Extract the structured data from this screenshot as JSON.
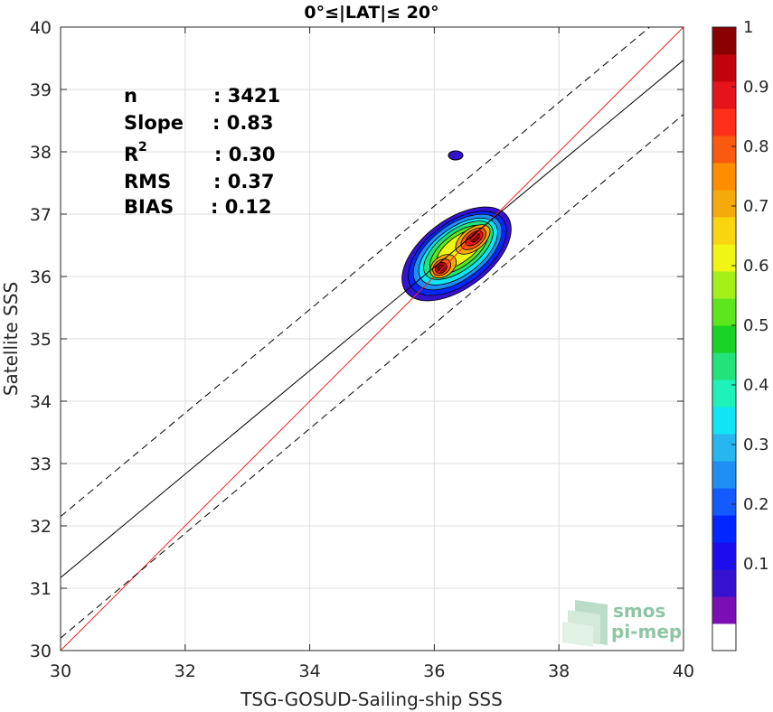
{
  "chart_data": {
    "type": "scatter",
    "title": "0°≤|LAT|≤ 20°",
    "xlabel": "TSG-GOSUD-Sailing-ship SSS",
    "ylabel": "Satellite SSS",
    "xlim": [
      30,
      40
    ],
    "ylim": [
      30,
      40
    ],
    "x_ticks": [
      "30",
      "32",
      "34",
      "36",
      "38",
      "40"
    ],
    "y_ticks": [
      "30",
      "31",
      "32",
      "33",
      "34",
      "35",
      "36",
      "37",
      "38",
      "39",
      "40"
    ],
    "grid": true,
    "stats": [
      {
        "label": "n",
        "value": ": 3421"
      },
      {
        "label": "Slope",
        "value": ": 0.83"
      },
      {
        "label": "R",
        "sup": "2",
        "value": ": 0.30"
      },
      {
        "label": "RMS",
        "value": ": 0.37"
      },
      {
        "label": "BIAS",
        "value": ": 0.12"
      }
    ],
    "lines": [
      {
        "kind": "identity",
        "color": "#e8261e",
        "x": [
          30,
          40
        ],
        "y": [
          30,
          40
        ]
      },
      {
        "kind": "regression",
        "color": "#000000",
        "x": [
          30,
          40
        ],
        "y": [
          31.17,
          39.47
        ]
      },
      {
        "kind": "upper-bound",
        "color": "#000000",
        "dash": true,
        "x": [
          30,
          40
        ],
        "y": [
          32.15,
          40.45
        ]
      },
      {
        "kind": "lower-bound",
        "color": "#000000",
        "dash": true,
        "x": [
          30,
          40
        ],
        "y": [
          30.2,
          38.6
        ]
      }
    ],
    "density_peaks": [
      {
        "x": 36.1,
        "y": 36.1
      },
      {
        "x": 36.55,
        "y": 36.65
      }
    ],
    "outlier_blob": {
      "x": 36.3,
      "y": 37.95
    },
    "colorbar": {
      "ticks": [
        "0.1",
        "0.2",
        "0.3",
        "0.4",
        "0.5",
        "0.6",
        "0.7",
        "0.8",
        "0.9",
        "1"
      ],
      "range": [
        0,
        1
      ],
      "colors": [
        "#ffffff",
        "#7b0fb5",
        "#3512d0",
        "#1d0dee",
        "#0027ff",
        "#135bff",
        "#1e8ef5",
        "#27b6ee",
        "#0fe5f5",
        "#1ef2b8",
        "#22e27a",
        "#18d325",
        "#5ee61d",
        "#a5f019",
        "#f0f514",
        "#f8d50e",
        "#f5aa0b",
        "#ff8d00",
        "#f95a0f",
        "#ff2f1b",
        "#e6131b",
        "#c1040c",
        "#8b0000"
      ]
    },
    "logo": [
      "smos",
      "pi-mep"
    ]
  }
}
